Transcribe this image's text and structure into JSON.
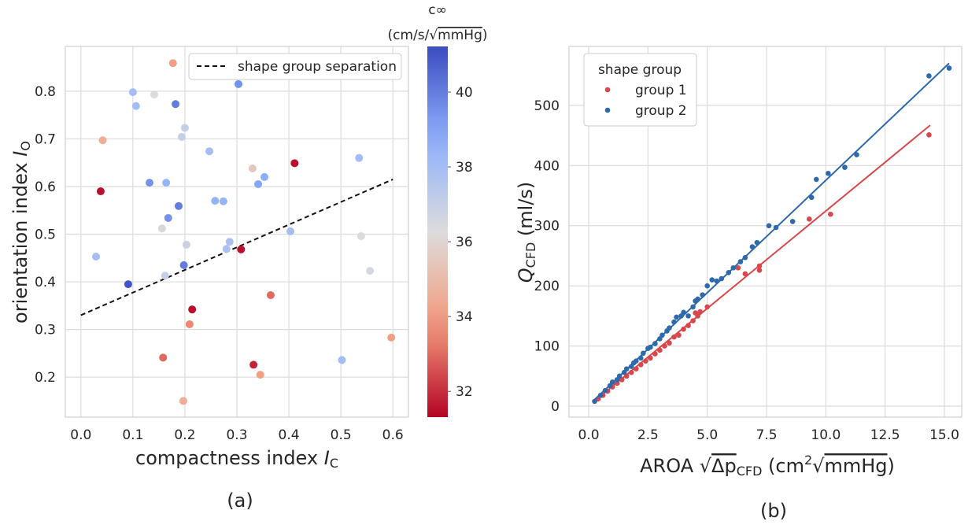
{
  "chart_data": [
    {
      "type": "scatter",
      "xlabel": "compactness index ",
      "xlabel_symbol": "I",
      "xlabel_sub": "C",
      "ylabel": "orientation index ",
      "ylabel_symbol": "I",
      "ylabel_sub": "O",
      "caption": "(a)",
      "xlim": [
        -0.03,
        0.63
      ],
      "ylim": [
        0.116,
        0.894
      ],
      "xticks": [
        {
          "value": 0,
          "label": "0.0"
        },
        0.1,
        0.2,
        0.3,
        0.4,
        0.5,
        0.6
      ],
      "yticks": [
        0.2,
        0.3,
        0.4,
        0.5,
        0.6,
        0.7,
        0.8
      ],
      "grid": true,
      "x": [
        0.177,
        0.1,
        0.106,
        0.141,
        0.182,
        0.303,
        0.2,
        0.194,
        0.042,
        0.247,
        0.535,
        0.411,
        0.33,
        0.038,
        0.132,
        0.164,
        0.353,
        0.341,
        0.168,
        0.188,
        0.258,
        0.274,
        0.156,
        0.203,
        0.286,
        0.28,
        0.403,
        0.539,
        0.556,
        0.308,
        0.029,
        0.198,
        0.162,
        0.091,
        0.214,
        0.365,
        0.209,
        0.158,
        0.332,
        0.345,
        0.502,
        0.597,
        0.197
      ],
      "values": [
        0.859,
        0.798,
        0.769,
        0.793,
        0.773,
        0.815,
        0.723,
        0.704,
        0.697,
        0.674,
        0.66,
        0.649,
        0.638,
        0.59,
        0.608,
        0.608,
        0.62,
        0.605,
        0.534,
        0.559,
        0.57,
        0.569,
        0.512,
        0.478,
        0.484,
        0.469,
        0.506,
        0.496,
        0.423,
        0.468,
        0.453,
        0.435,
        0.413,
        0.395,
        0.342,
        0.372,
        0.311,
        0.241,
        0.226,
        0.205,
        0.236,
        0.283,
        0.15
      ],
      "c": [
        34,
        38,
        38,
        36.3,
        40,
        39.5,
        37,
        37,
        34.5,
        38,
        38,
        31.5,
        35.5,
        31.5,
        39.5,
        38.5,
        38.8,
        39,
        39.5,
        40,
        38.5,
        38.5,
        36.5,
        36.8,
        37.8,
        37.8,
        38,
        36.3,
        36.5,
        31.5,
        38,
        40,
        37,
        41,
        31.5,
        33,
        33.5,
        33,
        31.8,
        34,
        38,
        34,
        34.5
      ],
      "colormap": "coolwarm_r",
      "clim": [
        31.31,
        41.22
      ],
      "cticks": [
        32,
        34,
        36,
        38,
        40
      ],
      "colorbar_label": "c∞",
      "colorbar_unit": "(cm/s/√",
      "colorbar_unit_root": "mmHg",
      "colorbar_unit_end": ")",
      "line": {
        "name": "shape group separation",
        "x": [
          0,
          0.6
        ],
        "values": [
          0.33,
          0.615
        ],
        "color": "#111111",
        "style": "dashed"
      },
      "legend": "upper right"
    },
    {
      "type": "scatter",
      "xlabel": "AROA ",
      "xlabel_root": "√",
      "xlabel_root_body": "Δp",
      "xlabel_root_sub": "CFD",
      "xlabel_unit": " (cm",
      "xlabel_unit_sup": "2",
      "xlabel_unit_root": "√",
      "xlabel_unit_root_body": "mmHg",
      "xlabel_unit_end": ")",
      "ylabel_symbol": "Q",
      "ylabel_sub": "CFD",
      "ylabel": " (ml/s)",
      "caption": "(b)",
      "xlim": [
        -0.83,
        15.73
      ],
      "ylim": [
        -18.3,
        598
      ],
      "xticks": [
        {
          "value": 0,
          "label": "0.0"
        },
        2.5,
        {
          "value": 5,
          "label": "5.0"
        },
        7.5,
        {
          "value": 10,
          "label": "10.0"
        },
        12.5,
        {
          "value": 15,
          "label": "15.0"
        }
      ],
      "yticks": [
        0,
        100,
        200,
        300,
        400,
        500
      ],
      "grid": true,
      "legend": "upper left",
      "legend_title": "shape group",
      "series": [
        {
          "name": "group 1",
          "color": "#d8474b",
          "x": [
            0.4,
            0.6,
            0.8,
            1.0,
            1.2,
            1.4,
            1.6,
            1.8,
            2.0,
            2.2,
            2.4,
            2.6,
            2.8,
            3.0,
            3.2,
            3.4,
            3.6,
            3.8,
            4.0,
            4.2,
            4.4,
            4.5,
            4.6,
            4.7,
            5.0,
            6.3,
            6.6,
            7.2,
            7.2,
            9.3,
            10.2,
            14.35
          ],
          "values": [
            12,
            18,
            25,
            32,
            38,
            44,
            50,
            56,
            62,
            69,
            75,
            80,
            87,
            93,
            100,
            105,
            115,
            118,
            128,
            134,
            142,
            155,
            150,
            157,
            165,
            230,
            220,
            233,
            226,
            311,
            319,
            451
          ],
          "fit_x": [
            0.2,
            14.4
          ],
          "fit_values": [
            7,
            467
          ]
        },
        {
          "name": "group 2",
          "color": "#2e6aab",
          "x": [
            0.25,
            0.5,
            0.7,
            0.9,
            1.0,
            1.2,
            1.3,
            1.5,
            1.6,
            1.8,
            1.9,
            2.0,
            2.2,
            2.3,
            2.5,
            2.6,
            2.8,
            3.0,
            3.1,
            3.3,
            3.4,
            3.6,
            3.7,
            3.9,
            4.0,
            4.2,
            4.4,
            4.5,
            4.6,
            4.8,
            5.0,
            5.2,
            5.4,
            5.6,
            5.9,
            6.1,
            6.4,
            6.6,
            6.9,
            7.1,
            7.6,
            7.9,
            8.6,
            9.4,
            9.6,
            10.1,
            10.8,
            11.3,
            14.35,
            15.2
          ],
          "values": [
            8,
            18,
            26,
            34,
            40,
            44,
            50,
            56,
            62,
            66,
            72,
            75,
            80,
            88,
            96,
            98,
            104,
            112,
            118,
            125,
            130,
            140,
            148,
            150,
            156,
            150,
            165,
            175,
            178,
            185,
            200,
            210,
            208,
            212,
            222,
            230,
            240,
            247,
            265,
            272,
            300,
            297,
            307,
            347,
            377,
            387,
            397,
            418,
            549,
            562
          ],
          "fit_x": [
            0.2,
            15.2
          ],
          "fit_values": [
            9,
            570
          ]
        }
      ]
    }
  ]
}
